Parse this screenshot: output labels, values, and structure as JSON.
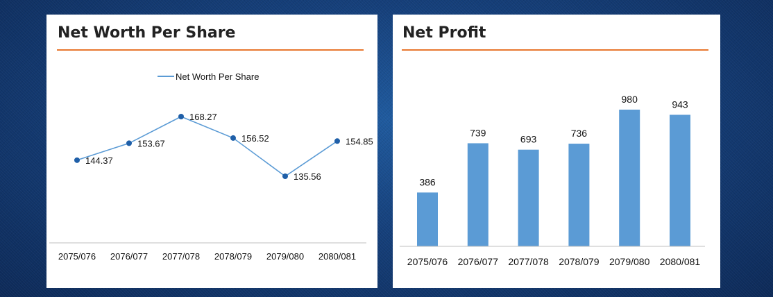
{
  "colors": {
    "accent_rule": "#e8772e",
    "line_series": "#5b9bd5",
    "marker": "#1f5fa8",
    "bar": "#5b9bd5"
  },
  "left_panel": {
    "title": "Net Worth Per Share"
  },
  "right_panel": {
    "title": "Net Profit"
  },
  "chart_data": [
    {
      "type": "line",
      "title": "Net Worth Per Share",
      "categories": [
        "2075/076",
        "2076/077",
        "2077/078",
        "2078/079",
        "2079/080",
        "2080/081"
      ],
      "series": [
        {
          "name": "Net Worth Per Share",
          "values": [
            144.37,
            153.67,
            168.27,
            156.52,
            135.56,
            154.85
          ]
        }
      ],
      "data_labels": [
        "144.37",
        "153.67",
        "168.27",
        "156.52",
        "135.56",
        "154.85"
      ],
      "legend": "top-center",
      "grid": false
    },
    {
      "type": "bar",
      "title": "Net Profit",
      "categories": [
        "2075/076",
        "2076/077",
        "2077/078",
        "2078/079",
        "2079/080",
        "2080/081"
      ],
      "values": [
        386,
        739,
        693,
        736,
        980,
        943
      ],
      "data_labels": [
        "386",
        "739",
        "693",
        "736",
        "980",
        "943"
      ],
      "ylim": [
        0,
        1000
      ],
      "grid": false
    }
  ]
}
